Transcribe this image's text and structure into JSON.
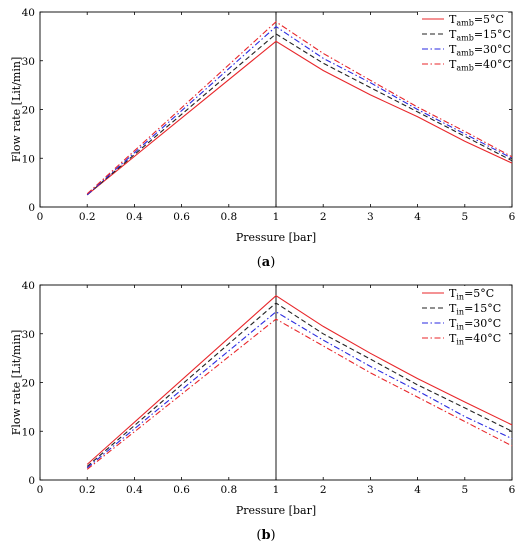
{
  "chart_data": [
    {
      "type": "line",
      "panel": "(a)",
      "xlabel": "Pressure [bar]",
      "ylabel": "Flow rate [Lit/min]",
      "ylim": [
        0,
        40
      ],
      "x_ticks": [
        "0",
        "0.2",
        "0.4",
        "0.6",
        "0.8",
        "1",
        "2",
        "3",
        "4",
        "5",
        "6"
      ],
      "y_ticks": [
        "0",
        "10",
        "20",
        "30",
        "40"
      ],
      "x": [
        0.2,
        1,
        2,
        3,
        4,
        5,
        6
      ],
      "grid": false,
      "legend_position": "top-right",
      "legend_symbol": "T",
      "series": [
        {
          "name_sub": "amb",
          "name_val": "=5°C",
          "color": "#e8262a",
          "dash": "solid",
          "values": [
            2.5,
            34,
            28,
            23,
            18.5,
            13.5,
            9
          ]
        },
        {
          "name_sub": "amb",
          "name_val": "=15°C",
          "color": "#222222",
          "dash": "dashed",
          "values": [
            2.5,
            35.5,
            29.5,
            24.5,
            19.5,
            14.5,
            9.5
          ]
        },
        {
          "name_sub": "amb",
          "name_val": "=30°C",
          "color": "#2a2ae0",
          "dash": "dashdot",
          "values": [
            2.5,
            37,
            30.5,
            25.5,
            20,
            15,
            10
          ]
        },
        {
          "name_sub": "amb",
          "name_val": "=40°C",
          "color": "#e8262a",
          "dash": "dashdot",
          "values": [
            2.7,
            38,
            31.5,
            26,
            20.5,
            15.5,
            10.3
          ]
        }
      ]
    },
    {
      "type": "line",
      "panel": "(b)",
      "xlabel": "Pressure [bar]",
      "ylabel": "Flow rate [Lit/min]",
      "ylim": [
        0,
        40
      ],
      "x_ticks": [
        "0",
        "0.2",
        "0.4",
        "0.6",
        "0.8",
        "1",
        "2",
        "3",
        "4",
        "5",
        "6"
      ],
      "y_ticks": [
        "0",
        "10",
        "20",
        "30",
        "40"
      ],
      "x": [
        0.2,
        1,
        2,
        3,
        4,
        5,
        6
      ],
      "grid": false,
      "legend_position": "top-right",
      "legend_symbol": "T",
      "series": [
        {
          "name_sub": "in",
          "name_val": "=5°C",
          "color": "#e8262a",
          "dash": "solid",
          "values": [
            3.2,
            37.8,
            31.5,
            26,
            20.8,
            16,
            11.3
          ]
        },
        {
          "name_sub": "in",
          "name_val": "=15°C",
          "color": "#222222",
          "dash": "dashed",
          "values": [
            2.8,
            36.3,
            30,
            24.8,
            19.5,
            14.8,
            10
          ]
        },
        {
          "name_sub": "in",
          "name_val": "=30°C",
          "color": "#2a2ae0",
          "dash": "dashdot",
          "values": [
            2.5,
            34.5,
            28.7,
            23.3,
            18.3,
            13,
            8.5
          ]
        },
        {
          "name_sub": "in",
          "name_val": "=40°C",
          "color": "#e8262a",
          "dash": "dashdot",
          "values": [
            2.2,
            33,
            27.5,
            22,
            17,
            12,
            7
          ]
        }
      ]
    }
  ]
}
